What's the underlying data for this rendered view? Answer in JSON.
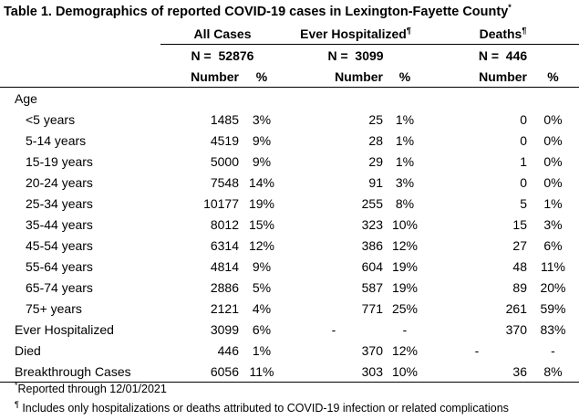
{
  "title": "Table 1. Demographics of reported COVID-19 cases in Lexington-Fayette County",
  "title_mark": "*",
  "groups": [
    {
      "label": "All Cases",
      "mark": "",
      "n_label": "N =",
      "n_value": "52876"
    },
    {
      "label": "Ever Hospitalized",
      "mark": "¶",
      "n_label": "N =",
      "n_value": "3099"
    },
    {
      "label": "Deaths",
      "mark": "¶",
      "n_label": "N =",
      "n_value": "446"
    }
  ],
  "col_headers": {
    "number": "Number",
    "percent": "%"
  },
  "section_label": "Age",
  "rows": [
    {
      "label": "<5 years",
      "sub": true,
      "cells": [
        "1485",
        "3%",
        "25",
        "1%",
        "0",
        "0%"
      ]
    },
    {
      "label": "5-14 years",
      "sub": true,
      "cells": [
        "4519",
        "9%",
        "28",
        "1%",
        "0",
        "0%"
      ]
    },
    {
      "label": "15-19 years",
      "sub": true,
      "cells": [
        "5000",
        "9%",
        "29",
        "1%",
        "1",
        "0%"
      ]
    },
    {
      "label": "20-24 years",
      "sub": true,
      "cells": [
        "7548",
        "14%",
        "91",
        "3%",
        "0",
        "0%"
      ]
    },
    {
      "label": "25-34 years",
      "sub": true,
      "cells": [
        "10177",
        "19%",
        "255",
        "8%",
        "5",
        "1%"
      ]
    },
    {
      "label": "35-44 years",
      "sub": true,
      "cells": [
        "8012",
        "15%",
        "323",
        "10%",
        "15",
        "3%"
      ]
    },
    {
      "label": "45-54 years",
      "sub": true,
      "cells": [
        "6314",
        "12%",
        "386",
        "12%",
        "27",
        "6%"
      ]
    },
    {
      "label": "55-64 years",
      "sub": true,
      "cells": [
        "4814",
        "9%",
        "604",
        "19%",
        "48",
        "11%"
      ]
    },
    {
      "label": "65-74 years",
      "sub": true,
      "cells": [
        "2886",
        "5%",
        "587",
        "19%",
        "89",
        "20%"
      ]
    },
    {
      "label": "75+ years",
      "sub": true,
      "cells": [
        "2121",
        "4%",
        "771",
        "25%",
        "261",
        "59%"
      ]
    },
    {
      "label": "Ever Hospitalized",
      "sub": false,
      "cells": [
        "3099",
        "6%",
        "-",
        "-",
        "370",
        "83%"
      ]
    },
    {
      "label": "Died",
      "sub": false,
      "cells": [
        "446",
        "1%",
        "370",
        "12%",
        "-",
        "-"
      ]
    },
    {
      "label": "Breakthrough Cases",
      "sub": false,
      "cells": [
        "6056",
        "11%",
        "303",
        "10%",
        "36",
        "8%"
      ]
    }
  ],
  "footnotes": [
    {
      "mark": "*",
      "text": "Reported through 12/01/2021"
    },
    {
      "mark": "¶",
      "text": " Includes only hospitalizations or deaths attributed to COVID-19 infection or related complications"
    }
  ]
}
